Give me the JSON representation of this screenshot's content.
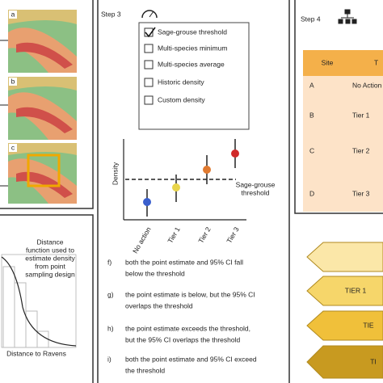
{
  "panel_left": {
    "map_labels": [
      "a",
      "b",
      "c"
    ],
    "distance_caption": [
      "Distance",
      "function used to",
      "estimate density",
      "from point",
      "sampling design"
    ],
    "x_label": "Distance to Ravens"
  },
  "step3": {
    "title": "Step 3",
    "options": [
      "Sage-grouse threshold",
      "Multi-species minimum",
      "Multi-species average",
      "Historic density",
      "Custom density"
    ],
    "chart": {
      "y_label": "Density",
      "categories": [
        "No action",
        "Tier 1",
        "Tier 2",
        "Tier 3"
      ],
      "threshold_label": [
        "Sage-grouse",
        "threshold"
      ]
    },
    "items": [
      {
        "key": "f)",
        "lines": [
          "both the point estimate and 95% CI fall",
          "below the threshold"
        ]
      },
      {
        "key": "g)",
        "lines": [
          "the point estimate is below, but the 95% CI",
          "overlaps the threshold"
        ]
      },
      {
        "key": "h)",
        "lines": [
          "the point estimate exceeds the threshold,",
          "but the 95% CI overlaps the threshold"
        ]
      },
      {
        "key": "i)",
        "lines": [
          "both the point estimate and 95% CI exceed",
          "the threshold"
        ]
      }
    ]
  },
  "step4": {
    "title": "Step 4",
    "table": {
      "header": [
        "Site",
        "T"
      ],
      "rows": [
        [
          "A",
          "No Action"
        ],
        [
          "B",
          "Tier 1"
        ],
        [
          "C",
          "Tier 2"
        ],
        [
          "D",
          "Tier 3"
        ]
      ]
    },
    "arrows": [
      "TIER 1",
      "TIE",
      "TI"
    ]
  }
}
